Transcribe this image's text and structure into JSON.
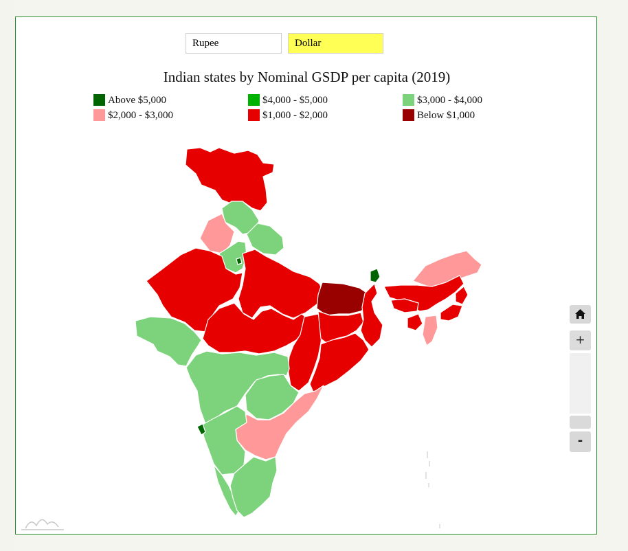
{
  "currency_buttons": {
    "rupee_label": "Rupee",
    "dollar_label": "Dollar"
  },
  "title": "Indian states by Nominal GSDP per capita (2019)",
  "legend": [
    {
      "label": "Above $5,000",
      "color": "#006400"
    },
    {
      "label": "$4,000 - $5,000",
      "color": "#00b200"
    },
    {
      "label": "$3,000 - $4,000",
      "color": "#7cd37c"
    },
    {
      "label": "$2,000 - $3,000",
      "color": "#ff9999"
    },
    {
      "label": "$1,000 - $2,000",
      "color": "#e60000"
    },
    {
      "label": "Below $1,000",
      "color": "#990000"
    }
  ],
  "zoom_controls": {
    "home_icon": "home-icon",
    "zoom_in_label": "+",
    "zoom_out_label": "-"
  },
  "map_regions": {
    "jammu-kashmir": "$1,000 - $2,000",
    "himachal-pradesh": "$3,000 - $4,000",
    "punjab": "$2,000 - $3,000",
    "uttarakhand": "$3,000 - $4,000",
    "haryana": "$3,000 - $4,000",
    "delhi": "Above $5,000",
    "rajasthan": "$1,000 - $2,000",
    "uttar-pradesh": "$1,000 - $2,000",
    "bihar": "Below $1,000",
    "sikkim": "Above $5,000",
    "gujarat": "$3,000 - $4,000",
    "madhya-pradesh": "$1,000 - $2,000",
    "chhattisgarh": "$1,000 - $2,000",
    "jharkhand": "$1,000 - $2,000",
    "west-bengal": "$1,000 - $2,000",
    "odisha": "$1,000 - $2,000",
    "maharashtra": "$3,000 - $4,000",
    "telangana": "$3,000 - $4,000",
    "andhra-pradesh": "$2,000 - $3,000",
    "karnataka": "$3,000 - $4,000",
    "goa": "Above $5,000",
    "kerala": "$3,000 - $4,000",
    "tamil-nadu": "$3,000 - $4,000",
    "arunachal-pradesh": "$2,000 - $3,000",
    "assam": "$1,000 - $2,000",
    "meghalaya": "$1,000 - $2,000",
    "nagaland": "$1,000 - $2,000",
    "manipur": "$1,000 - $2,000",
    "mizoram": "$2,000 - $3,000",
    "tripura": "$1,000 - $2,000"
  }
}
